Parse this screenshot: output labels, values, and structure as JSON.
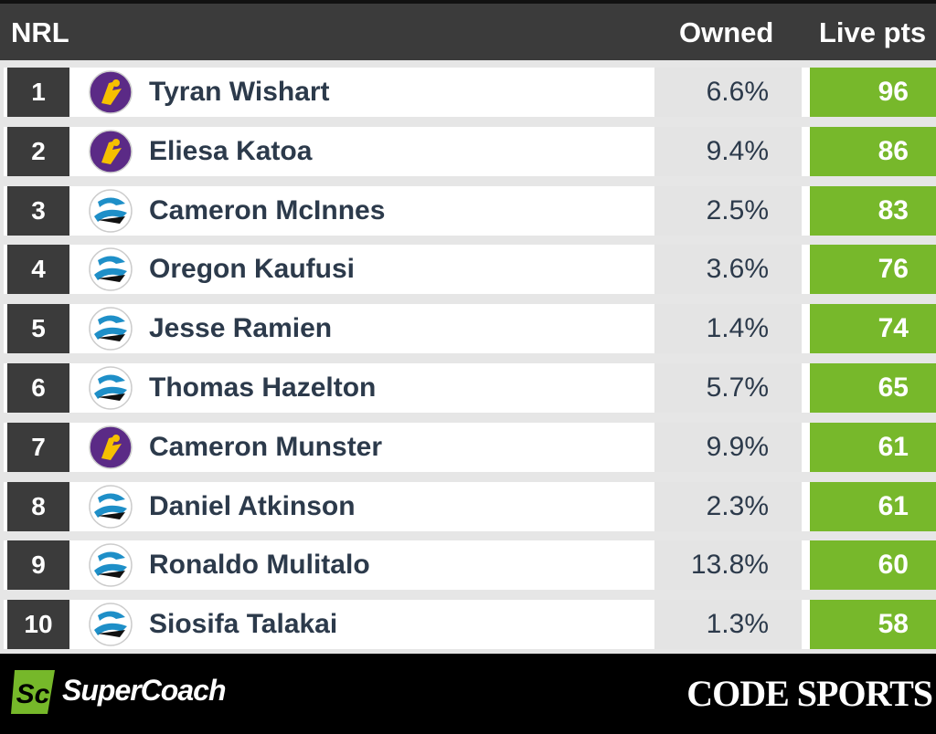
{
  "header": {
    "title": "NRL",
    "owned": "Owned",
    "points": "Live pts"
  },
  "table": {
    "rows": [
      [
        1,
        "Tyran Wishart",
        "6.6%",
        96
      ],
      [
        2,
        "Eliesa Katoa",
        "9.4%",
        86
      ],
      [
        3,
        "Cameron McInnes",
        "2.5%",
        83
      ],
      [
        4,
        "Oregon Kaufusi",
        "3.6%",
        76
      ],
      [
        5,
        "Jesse Ramien",
        "1.4%",
        74
      ],
      [
        6,
        "Thomas Hazelton",
        "5.7%",
        65
      ],
      [
        7,
        "Cameron Munster",
        "9.9%",
        61
      ],
      [
        8,
        "Daniel Atkinson",
        "2.3%",
        61
      ],
      [
        9,
        "Ronaldo Mulitalo",
        "13.8%",
        60
      ],
      [
        10,
        "Siosifa Talakai",
        "1.3%",
        58
      ]
    ]
  },
  "footer": {
    "left": "SuperCoach",
    "right": "CODE SPORTS"
  }
}
